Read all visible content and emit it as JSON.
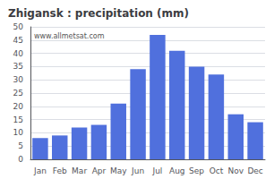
{
  "chart_data": {
    "type": "bar",
    "title": "Zhigansk : precipitation (mm)",
    "categories": [
      "Jan",
      "Feb",
      "Mar",
      "Apr",
      "May",
      "Jun",
      "Jul",
      "Aug",
      "Sep",
      "Oct",
      "Nov",
      "Dec"
    ],
    "values": [
      8,
      9,
      12,
      13,
      21,
      34,
      47,
      41,
      35,
      32,
      17,
      14
    ],
    "ylim": [
      0,
      50
    ],
    "yticks": [
      0,
      5,
      10,
      15,
      20,
      25,
      30,
      35,
      40,
      45,
      50
    ],
    "grid": true,
    "annotations": [
      "www.allmetsat.com"
    ]
  }
}
